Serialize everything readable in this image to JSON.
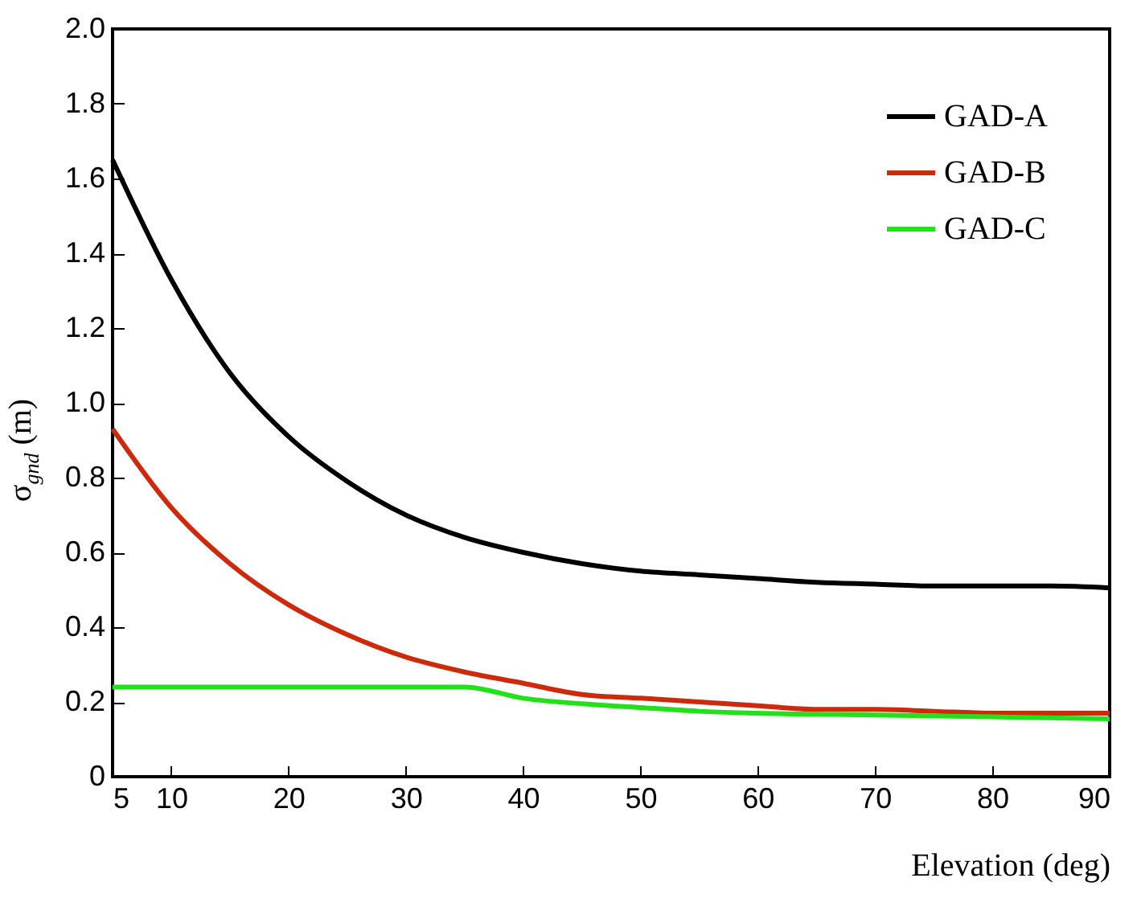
{
  "chart_data": {
    "type": "line",
    "xlabel": "Elevation (deg)",
    "ylabel": "σ$_{gnd}$ (m)",
    "xlim": [
      5,
      90
    ],
    "xticks": [
      5,
      10,
      20,
      30,
      40,
      50,
      60,
      70,
      80,
      90
    ],
    "ylim": [
      0,
      2
    ],
    "yticks": [
      0,
      0.2,
      0.4,
      0.6,
      0.8,
      {
        "value": 1,
        "label": "1.0"
      },
      1.2,
      1.4,
      1.6,
      1.8,
      {
        "value": 2,
        "label": "2.0"
      }
    ],
    "grid": false,
    "legend": "top right",
    "marker": "none",
    "line_style": "solid",
    "series": [
      {
        "name": "GAD-A",
        "color": "#000000",
        "x": [
          5,
          10,
          15,
          20,
          25,
          30,
          35,
          40,
          45,
          50,
          55,
          60,
          65,
          70,
          75,
          80,
          85,
          90
        ],
        "values": [
          1.65,
          1.33,
          1.08,
          0.91,
          0.79,
          0.7,
          0.64,
          0.6,
          0.57,
          0.55,
          0.54,
          0.53,
          0.52,
          0.515,
          0.51,
          0.51,
          0.51,
          0.505
        ]
      },
      {
        "name": "GAD-B",
        "color": "#cc2a0a",
        "x": [
          5,
          10,
          15,
          20,
          25,
          30,
          35,
          40,
          45,
          50,
          55,
          60,
          65,
          70,
          75,
          80,
          85,
          90
        ],
        "values": [
          0.93,
          0.72,
          0.57,
          0.46,
          0.38,
          0.32,
          0.28,
          0.25,
          0.22,
          0.21,
          0.2,
          0.19,
          0.18,
          0.18,
          0.175,
          0.17,
          0.17,
          0.17
        ]
      },
      {
        "name": "GAD-C",
        "color": "#22e01a",
        "x": [
          5,
          35,
          40,
          45,
          50,
          55,
          60,
          70,
          80,
          90
        ],
        "values": [
          0.24,
          0.24,
          0.21,
          0.195,
          0.185,
          0.175,
          0.17,
          0.165,
          0.16,
          0.155
        ]
      }
    ]
  }
}
